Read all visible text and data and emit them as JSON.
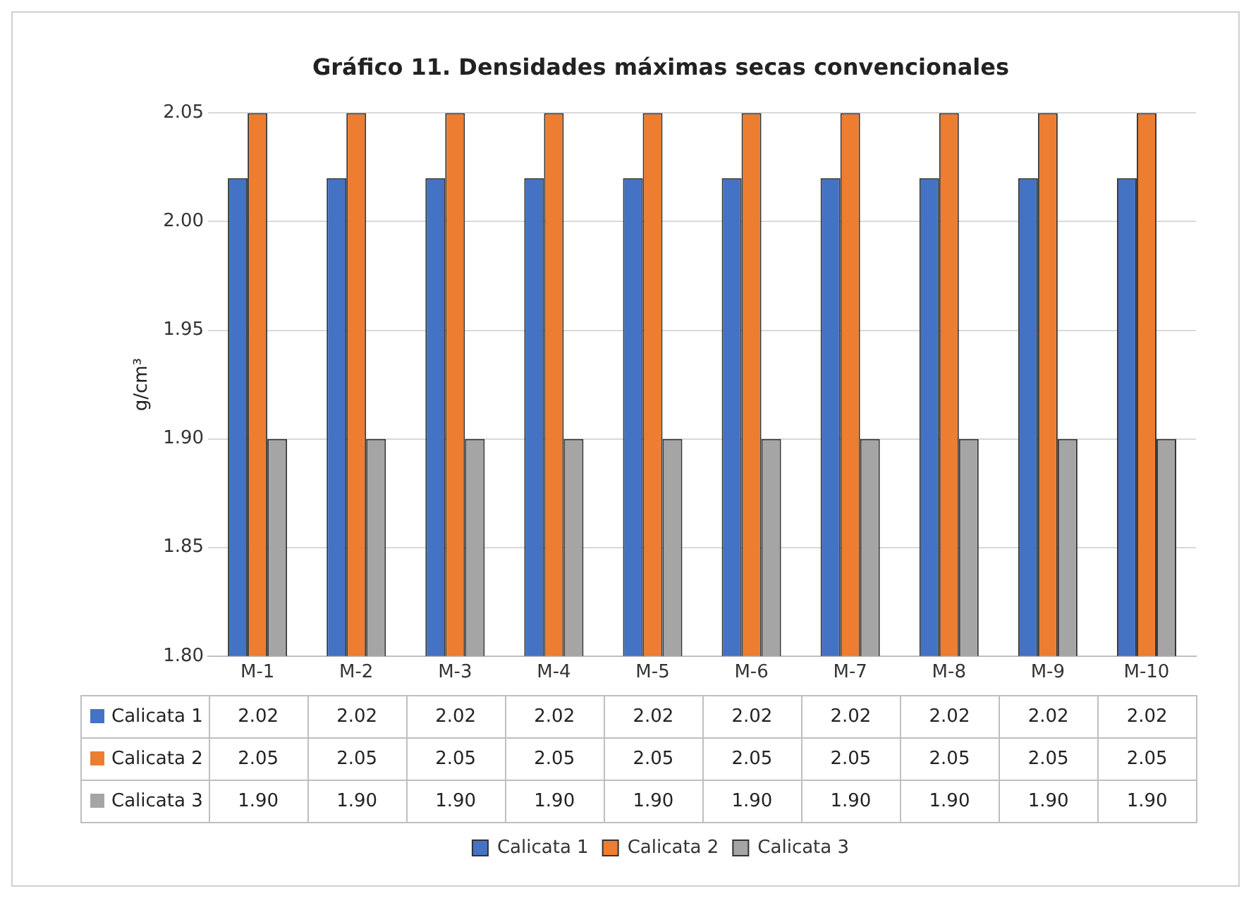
{
  "chart_data": {
    "type": "bar",
    "title": "Gráfico 11. Densidades máximas secas convencionales",
    "ylabel": "g/cm³",
    "categories": [
      "M-1",
      "M-2",
      "M-3",
      "M-4",
      "M-5",
      "M-6",
      "M-7",
      "M-8",
      "M-9",
      "M-10"
    ],
    "series": [
      {
        "name": "Calicata 1",
        "color": "#4472c4",
        "values": [
          2.02,
          2.02,
          2.02,
          2.02,
          2.02,
          2.02,
          2.02,
          2.02,
          2.02,
          2.02
        ],
        "value_labels": [
          "2.02",
          "2.02",
          "2.02",
          "2.02",
          "2.02",
          "2.02",
          "2.02",
          "2.02",
          "2.02",
          "2.02"
        ]
      },
      {
        "name": "Calicata 2",
        "color": "#ed7d31",
        "values": [
          2.05,
          2.05,
          2.05,
          2.05,
          2.05,
          2.05,
          2.05,
          2.05,
          2.05,
          2.05
        ],
        "value_labels": [
          "2.05",
          "2.05",
          "2.05",
          "2.05",
          "2.05",
          "2.05",
          "2.05",
          "2.05",
          "2.05",
          "2.05"
        ]
      },
      {
        "name": "Calicata 3",
        "color": "#a5a5a5",
        "values": [
          1.9,
          1.9,
          1.9,
          1.9,
          1.9,
          1.9,
          1.9,
          1.9,
          1.9,
          1.9
        ],
        "value_labels": [
          "1.90",
          "1.90",
          "1.90",
          "1.90",
          "1.90",
          "1.90",
          "1.90",
          "1.90",
          "1.90",
          "1.90"
        ]
      }
    ],
    "ylim": [
      1.8,
      2.05
    ],
    "yticks": [
      {
        "value": 1.8,
        "label": "1.80"
      },
      {
        "value": 1.85,
        "label": "1.85"
      },
      {
        "value": 1.9,
        "label": "1.90"
      },
      {
        "value": 1.95,
        "label": "1.95"
      },
      {
        "value": 2.0,
        "label": "2.00"
      },
      {
        "value": 2.05,
        "label": "2.05"
      }
    ],
    "grid": "y",
    "legend": "bottom"
  }
}
